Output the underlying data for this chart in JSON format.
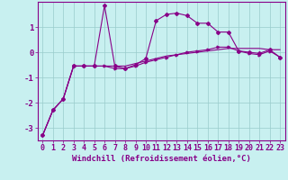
{
  "xlabel": "Windchill (Refroidissement éolien,°C)",
  "background_color": "#c8f0f0",
  "line_color": "#880088",
  "grid_color": "#99cccc",
  "xlim": [
    -0.5,
    23.5
  ],
  "ylim": [
    -3.5,
    2.0
  ],
  "yticks": [
    -3,
    -2,
    -1,
    0,
    1
  ],
  "xticks": [
    0,
    1,
    2,
    3,
    4,
    5,
    6,
    7,
    8,
    9,
    10,
    11,
    12,
    13,
    14,
    15,
    16,
    17,
    18,
    19,
    20,
    21,
    22,
    23
  ],
  "line1_x": [
    0,
    1,
    2,
    3,
    4,
    5,
    6,
    7,
    8,
    9,
    10,
    11,
    12,
    13,
    14,
    15,
    16,
    17,
    18,
    19,
    20,
    21,
    22,
    23
  ],
  "line1_y": [
    -3.3,
    -2.3,
    -1.85,
    -0.55,
    -0.55,
    -0.55,
    -0.55,
    -0.55,
    -0.55,
    -0.45,
    -0.35,
    -0.25,
    -0.15,
    -0.1,
    -0.05,
    0.0,
    0.05,
    0.1,
    0.15,
    0.15,
    0.15,
    0.15,
    0.1,
    0.1
  ],
  "line2_x": [
    0,
    1,
    2,
    3,
    4,
    5,
    6,
    7,
    8,
    9,
    10,
    11,
    12,
    13,
    14,
    15,
    16,
    17,
    18,
    19,
    20,
    21,
    22,
    23
  ],
  "line2_y": [
    -3.3,
    -2.3,
    -1.85,
    -0.55,
    -0.55,
    -0.55,
    1.85,
    -0.55,
    -0.65,
    -0.5,
    -0.25,
    1.25,
    1.5,
    1.55,
    1.45,
    1.15,
    1.15,
    0.8,
    0.8,
    0.05,
    0.0,
    -0.05,
    0.1,
    -0.2
  ],
  "line3_x": [
    0,
    1,
    2,
    3,
    4,
    5,
    6,
    7,
    8,
    9,
    10,
    11,
    12,
    13,
    14,
    15,
    16,
    17,
    18,
    19,
    20,
    21,
    22,
    23
  ],
  "line3_y": [
    -3.3,
    -2.3,
    -1.85,
    -0.55,
    -0.55,
    -0.55,
    -0.55,
    -0.65,
    -0.65,
    -0.55,
    -0.4,
    -0.3,
    -0.2,
    -0.1,
    0.0,
    0.05,
    0.1,
    0.2,
    0.2,
    0.05,
    -0.05,
    -0.1,
    0.05,
    -0.2
  ],
  "fontsize_label": 6.5,
  "fontsize_tick": 6.0
}
